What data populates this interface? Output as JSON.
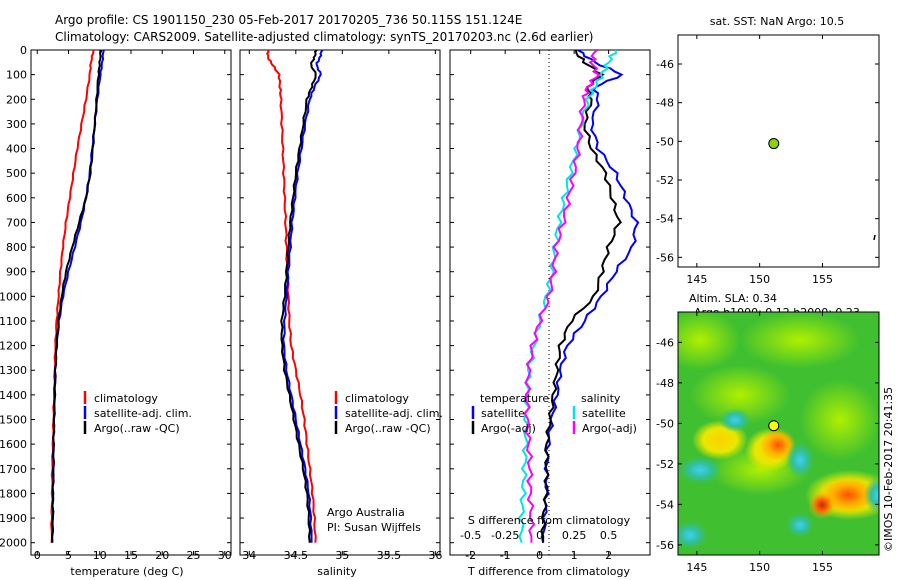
{
  "header": {
    "line1": "Argo profile: CS 1901150_230 05-Feb-2017 20170205_736 50.115S 151.124E",
    "line2": "Climatology: CARS2009. Satellite-adjusted climatology: synTS_20170203.nc (2.6d earlier)"
  },
  "colors": {
    "climatology": "#ff0000",
    "satellite": "#0000ff",
    "argo": "#000000",
    "sat_salinity": "#00e5e5",
    "argo_salinity": "#ff00ff",
    "float_marker": "#8cd400"
  },
  "depth_ticks": [
    "0",
    "100",
    "200",
    "300",
    "400",
    "500",
    "600",
    "700",
    "800",
    "900",
    "1000",
    "1100",
    "1200",
    "1300",
    "1400",
    "1500",
    "1600",
    "1700",
    "1800",
    "1900",
    "2000"
  ],
  "panels": {
    "temperature": {
      "xlabel": "temperature (deg C)",
      "xticks": [
        "0",
        "5",
        "10",
        "15",
        "20",
        "25",
        "30"
      ],
      "legend": [
        "climatology",
        "satellite-adj. clim.",
        "Argo(..raw -QC)"
      ]
    },
    "salinity": {
      "xlabel": "salinity",
      "xticks": [
        "34",
        "34.5",
        "35",
        "35.5",
        "36"
      ],
      "legend": [
        "climatology",
        "satellite-adj. clim.",
        "Argo(..raw -QC)"
      ],
      "credit1": "Argo Australia",
      "credit2": "PI: Susan Wijffels"
    },
    "difference": {
      "xlabel": "T difference from climatology",
      "s_label": "S difference from climatology",
      "t_ticks": [
        "-2",
        "-1",
        "0",
        "1",
        "2"
      ],
      "s_ticks": [
        "-0.5",
        "-0.25",
        "0",
        "0.25",
        "0.5"
      ],
      "legend_t_head": "temperature",
      "legend_s_head": "salinity",
      "legend_t": [
        "satellite",
        "Argo(-adj)"
      ],
      "legend_s": [
        "satellite",
        "Argo(-adj)"
      ]
    },
    "sst_map": {
      "title": "sat. SST: NaN Argo: 10.5",
      "yticks": [
        "-46",
        "-48",
        "-50",
        "-52",
        "-54",
        "-56"
      ],
      "xticks": [
        "145",
        "150",
        "155"
      ]
    },
    "sla_map": {
      "title1": "Altim. SLA: 0.34",
      "title2": "Argo h1000: 0.12 h2000: 0.23",
      "yticks": [
        "-46",
        "-48",
        "-50",
        "-52",
        "-54",
        "-56"
      ],
      "xticks": [
        "145",
        "150",
        "155"
      ],
      "stamp": "©IMOS 10-Feb-2017 20:41:35"
    }
  },
  "chart_data": [
    {
      "type": "line",
      "panel": "temperature",
      "xlabel": "temperature (deg C)",
      "ylabel": "",
      "xlim": [
        -1,
        31
      ],
      "ylim": [
        2050,
        0
      ],
      "depth": [
        0,
        50,
        100,
        200,
        300,
        400,
        500,
        600,
        700,
        800,
        900,
        1000,
        1100,
        1200,
        1300,
        1400,
        1500,
        1600,
        1700,
        1800,
        1900,
        2000
      ],
      "series": [
        {
          "name": "climatology",
          "values": [
            9.0,
            8.6,
            8.4,
            7.8,
            7.1,
            6.4,
            5.8,
            5.2,
            4.6,
            4.1,
            3.7,
            3.4,
            3.1,
            2.9,
            2.8,
            2.7,
            2.6,
            2.5,
            2.4,
            2.4,
            2.3,
            2.3
          ]
        },
        {
          "name": "satellite-adj. clim.",
          "values": [
            10.6,
            10.4,
            10.1,
            9.6,
            9.2,
            8.8,
            8.4,
            7.8,
            7.0,
            6.0,
            5.0,
            4.1,
            3.5,
            3.1,
            2.9,
            2.8,
            2.7,
            2.6,
            2.6,
            2.5,
            2.5,
            2.4
          ]
        },
        {
          "name": "Argo(..raw -QC)",
          "values": [
            10.2,
            10.0,
            9.8,
            9.5,
            9.2,
            8.9,
            8.5,
            7.8,
            6.7,
            5.6,
            4.6,
            3.9,
            3.4,
            3.1,
            2.9,
            2.8,
            2.7,
            2.6,
            2.6,
            2.5,
            2.5,
            2.4
          ]
        }
      ]
    },
    {
      "type": "line",
      "panel": "salinity",
      "xlabel": "salinity",
      "ylabel": "",
      "xlim": [
        33.9,
        36.05
      ],
      "ylim": [
        2050,
        0
      ],
      "depth": [
        0,
        30,
        60,
        100,
        150,
        200,
        300,
        400,
        500,
        600,
        700,
        800,
        900,
        1000,
        1100,
        1200,
        1300,
        1400,
        1500,
        1600,
        1700,
        1800,
        1900,
        2000
      ],
      "series": [
        {
          "name": "climatology",
          "values": [
            34.2,
            34.2,
            34.25,
            34.32,
            34.33,
            34.34,
            34.35,
            34.36,
            34.37,
            34.38,
            34.39,
            34.4,
            34.41,
            34.42,
            34.43,
            34.45,
            34.5,
            34.55,
            34.59,
            34.62,
            34.65,
            34.68,
            34.7,
            34.71
          ]
        },
        {
          "name": "satellite-adj. clim.",
          "values": [
            34.78,
            34.76,
            34.72,
            34.77,
            34.7,
            34.65,
            34.6,
            34.56,
            34.52,
            34.49,
            34.46,
            34.44,
            34.42,
            34.4,
            34.38,
            34.37,
            34.4,
            34.45,
            34.5,
            34.55,
            34.6,
            34.64,
            34.66,
            34.67
          ]
        },
        {
          "name": "Argo(..raw -QC)",
          "values": [
            34.72,
            34.7,
            34.66,
            34.72,
            34.67,
            34.62,
            34.58,
            34.54,
            34.5,
            34.47,
            34.44,
            34.42,
            34.4,
            34.38,
            34.35,
            34.35,
            34.38,
            34.43,
            34.48,
            34.53,
            34.58,
            34.62,
            34.64,
            34.65
          ]
        }
      ]
    },
    {
      "type": "line",
      "panel": "difference",
      "xlabel": "T difference from climatology",
      "ylabel": "",
      "xlim": [
        -2.6,
        3.2
      ],
      "ylim": [
        2050,
        0
      ],
      "depth": [
        0,
        50,
        100,
        150,
        200,
        300,
        400,
        500,
        600,
        700,
        800,
        900,
        1000,
        1100,
        1200,
        1300,
        1400,
        1500,
        1600,
        1700,
        1800,
        1900,
        2000
      ],
      "series": [
        {
          "name": "satellite",
          "values": [
            1.1,
            1.6,
            2.4,
            1.6,
            1.7,
            1.5,
            1.7,
            2.2,
            2.5,
            2.8,
            2.7,
            2.2,
            1.8,
            1.3,
            0.8,
            0.6,
            0.5,
            0.35,
            0.25,
            0.2,
            0.2,
            0.15,
            0.1
          ]
        },
        {
          "name": "Argo(-adj)",
          "values": [
            1.0,
            1.3,
            1.8,
            1.4,
            1.5,
            1.3,
            1.5,
            1.9,
            2.1,
            2.3,
            2.0,
            1.8,
            1.6,
            0.9,
            0.6,
            0.5,
            0.4,
            0.3,
            0.2,
            0.2,
            0.2,
            0.1,
            0.1
          ]
        }
      ]
    },
    {
      "type": "line",
      "panel": "difference",
      "xlabel": "S difference from climatology",
      "ylabel": "",
      "xlim": [
        -0.65,
        0.8
      ],
      "ylim": [
        2050,
        0
      ],
      "depth": [
        0,
        50,
        100,
        150,
        200,
        300,
        400,
        500,
        600,
        700,
        800,
        900,
        1000,
        1100,
        1200,
        1300,
        1400,
        1500,
        1600,
        1700,
        1800,
        1900,
        2000
      ],
      "series": [
        {
          "name": "satellite",
          "values": [
            0.55,
            0.5,
            0.45,
            0.4,
            0.35,
            0.3,
            0.27,
            0.22,
            0.18,
            0.14,
            0.11,
            0.09,
            0.05,
            0.0,
            -0.04,
            -0.08,
            -0.09,
            -0.1,
            -0.1,
            -0.11,
            -0.12,
            -0.13,
            -0.13
          ]
        },
        {
          "name": "Argo(-adj)",
          "values": [
            0.4,
            0.38,
            0.42,
            0.35,
            0.32,
            0.3,
            0.28,
            0.25,
            0.21,
            0.17,
            0.12,
            0.1,
            0.07,
            0.0,
            -0.05,
            -0.08,
            -0.09,
            -0.09,
            -0.08,
            -0.07,
            -0.07,
            -0.06,
            -0.06
          ]
        }
      ]
    },
    {
      "type": "scatter",
      "panel": "sst_map",
      "title": "sat. SST: NaN Argo: 10.5",
      "xlim": [
        143.5,
        159.5
      ],
      "ylim": [
        -56.5,
        -44.5
      ],
      "points": [
        {
          "lon": 151.124,
          "lat": -50.115
        }
      ]
    },
    {
      "type": "heatmap",
      "panel": "sla_map",
      "title": "Argo h1000: 0.12 h2000: 0.23",
      "xlim": [
        143.5,
        159.5
      ],
      "ylim": [
        -56.5,
        -44.5
      ],
      "points": [
        {
          "lon": 151.124,
          "lat": -50.115
        }
      ]
    }
  ]
}
